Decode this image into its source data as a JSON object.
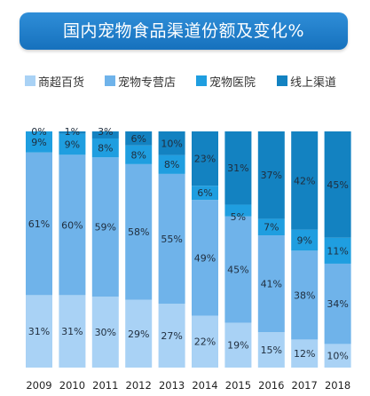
{
  "title": "国内宠物食品渠道份额及变化%",
  "colors": {
    "title_bg": "#1f7fcb",
    "商超百货": "#a9d2f5",
    "宠物专营店": "#6fb3ea",
    "宠物医院": "#1f9ee0",
    "线上渠道": "#1382c1"
  },
  "chart_data": {
    "type": "bar",
    "stacked": true,
    "normalized_percent": true,
    "title": "国内宠物食品渠道份额及变化%",
    "legend_position": "top",
    "grid": false,
    "ylim": [
      0,
      100
    ],
    "categories": [
      "2009",
      "2010",
      "2011",
      "2012",
      "2013",
      "2014",
      "2015",
      "2016",
      "2017",
      "2018"
    ],
    "series": [
      {
        "name": "商超百货",
        "values": [
          31,
          31,
          30,
          29,
          27,
          22,
          19,
          15,
          12,
          10
        ]
      },
      {
        "name": "宠物专营店",
        "values": [
          61,
          60,
          59,
          58,
          55,
          49,
          45,
          41,
          38,
          34
        ]
      },
      {
        "name": "宠物医院",
        "values": [
          9,
          9,
          8,
          8,
          8,
          6,
          5,
          7,
          9,
          11
        ]
      },
      {
        "name": "线上渠道",
        "values": [
          0,
          1,
          3,
          6,
          10,
          23,
          31,
          37,
          42,
          45
        ]
      }
    ],
    "value_labels": [
      [
        "31%",
        "61%",
        "9%",
        "0%"
      ],
      [
        "31%",
        "60%",
        "9%",
        "1%"
      ],
      [
        "30%",
        "59%",
        "8%",
        "3%"
      ],
      [
        "29%",
        "58%",
        "8%",
        "6%"
      ],
      [
        "27%",
        "55%",
        "8%",
        "10%"
      ],
      [
        "22%",
        "49%",
        "6%",
        "23%"
      ],
      [
        "19%",
        "45%",
        "5%",
        "31%"
      ],
      [
        "15%",
        "41%",
        "7%",
        "37%"
      ],
      [
        "12%",
        "38%",
        "9%",
        "42%"
      ],
      [
        "10%",
        "34%",
        "11%",
        "45%"
      ]
    ]
  }
}
